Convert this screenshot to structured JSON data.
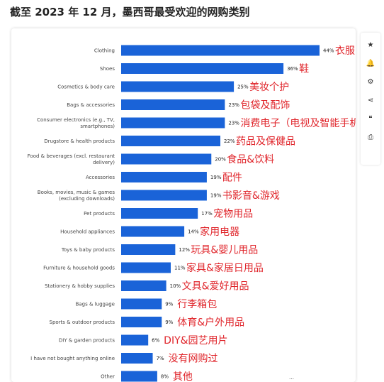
{
  "title": "截至 2023 年 12 月，墨西哥最受欢迎的网购类别",
  "toolbar": {
    "items": [
      {
        "name": "star-icon",
        "glyph": "★"
      },
      {
        "name": "bell-icon",
        "glyph": "🔔"
      },
      {
        "name": "gear-icon",
        "glyph": "⚙"
      },
      {
        "name": "share-icon",
        "glyph": "⋖"
      },
      {
        "name": "quote-icon",
        "glyph": "❝"
      },
      {
        "name": "print-icon",
        "glyph": "⎙"
      }
    ]
  },
  "footnote": "…",
  "colors": {
    "bar": "#1a63d8",
    "annotation": "#e0252b",
    "label": "#444444",
    "value": "#222222"
  },
  "chart_data": {
    "type": "bar",
    "orientation": "horizontal",
    "grid": false,
    "xlim": [
      0,
      44
    ],
    "categories": [
      [
        "Clothing"
      ],
      [
        "Shoes"
      ],
      [
        "Cosmetics & body care"
      ],
      [
        "Bags & accessories"
      ],
      [
        "Consumer electronics (e.g., TV,",
        "smartphones)"
      ],
      [
        "Drugstore & health products"
      ],
      [
        "Food & beverages (excl. restaurant",
        "delivery)"
      ],
      [
        "Accessories"
      ],
      [
        "Books, movies, music & games",
        "(excluding downloads)"
      ],
      [
        "Pet products"
      ],
      [
        "Household appliances"
      ],
      [
        "Toys & baby products"
      ],
      [
        "Furniture & household goods"
      ],
      [
        "Stationery & hobby supplies"
      ],
      [
        "Bags & luggage"
      ],
      [
        "Sports & outdoor products"
      ],
      [
        "DIY & garden products"
      ],
      [
        "I have not bought anything online"
      ],
      [
        "Other"
      ]
    ],
    "values": [
      44,
      36,
      25,
      23,
      23,
      22,
      20,
      19,
      19,
      17,
      14,
      12,
      11,
      10,
      9,
      9,
      6,
      7,
      8
    ],
    "value_labels": [
      "44%",
      "36%",
      "25%",
      "23%",
      "23%",
      "22%",
      "20%",
      "19%",
      "19%",
      "17%",
      "14%",
      "12%",
      "11%",
      "10%",
      "9%",
      "9%",
      "6%",
      "7%",
      "8%"
    ],
    "annotations": [
      "衣服",
      "鞋",
      "美妆个护",
      "包袋及配饰",
      "消费电子（电视及智能手机等）",
      "药品及保健品",
      "食品&饮料",
      "配件",
      "书影音&游戏",
      "宠物用品",
      "家用电器",
      "玩具&婴儿用品",
      "家具&家居日用品",
      "文具&爱好用品",
      "行李箱包",
      "体育&户外用品",
      "DIY&园艺用片",
      "没有网购过",
      "其他"
    ]
  }
}
